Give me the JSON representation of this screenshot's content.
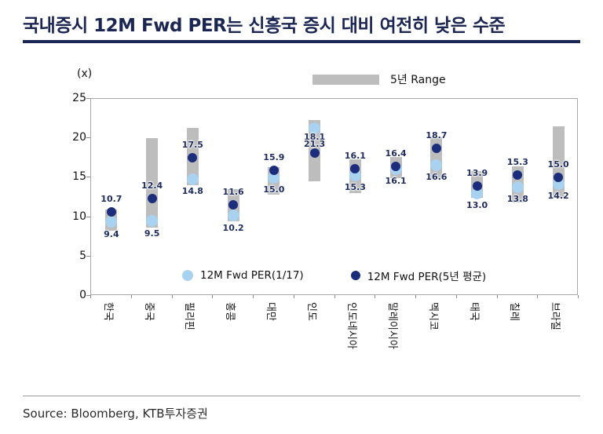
{
  "title": "국내증시 12M Fwd PER는 신흥국 증시 대비 여전히 낮은 수준",
  "source": "Source: Bloomberg, KTB투자증권",
  "chart_data": {
    "type": "range-scatter",
    "title": "국내증시 12M Fwd PER는 신흥국 증시 대비 여전히 낮은 수준",
    "y_unit": "(x)",
    "ylim": [
      0,
      25
    ],
    "yticks": [
      0,
      5,
      10,
      15,
      20,
      25
    ],
    "grid": false,
    "range_legend_label": "5년 Range",
    "legend_position": "bottom-inside",
    "categories": [
      "한국",
      "중국",
      "필리핀",
      "홍콩",
      "대만",
      "인도",
      "인도네시아",
      "말레이시아",
      "멕시코",
      "태국",
      "칠레",
      "브라질"
    ],
    "series": [
      {
        "name": "12M Fwd PER(1/17)",
        "color": "#a9d2f0",
        "values": [
          9.4,
          9.5,
          14.8,
          10.2,
          15.0,
          21.3,
          15.3,
          16.1,
          16.6,
          13.0,
          13.8,
          14.2
        ]
      },
      {
        "name": "12M Fwd PER(5년 평균)",
        "color": "#1c2e7b",
        "values": [
          10.7,
          12.4,
          17.5,
          11.6,
          15.9,
          18.1,
          16.1,
          16.4,
          18.7,
          13.9,
          15.3,
          15.0
        ]
      }
    ],
    "range_5yr": {
      "name": "5년 Range",
      "color": "#bdbdbd",
      "low": [
        8.3,
        8.7,
        14.0,
        9.5,
        12.8,
        14.5,
        13.0,
        14.9,
        14.8,
        12.4,
        11.9,
        12.4
      ],
      "high": [
        11.0,
        20.0,
        21.3,
        13.5,
        16.3,
        22.3,
        17.3,
        17.6,
        20.1,
        15.8,
        16.4,
        21.5
      ]
    },
    "colors": {
      "range": "#bdbdbd",
      "current": "#a9d2f0",
      "average": "#1c2e7b",
      "value_label": "#1f2c5e",
      "axis": "#a8a8a8",
      "title": "#1b2653"
    }
  }
}
